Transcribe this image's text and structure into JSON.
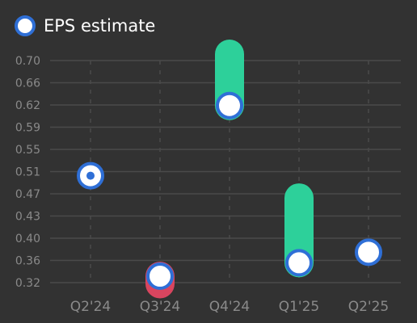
{
  "chart_data": {
    "type": "scatter",
    "title": "",
    "xlabel": "",
    "ylabel": "",
    "legend": {
      "label": "EPS estimate",
      "placement": "top-left"
    },
    "categories": [
      "Q2'24",
      "Q3'24",
      "Q4'24",
      "Q1'25",
      "Q2'25"
    ],
    "y_ticks": [
      "0.32",
      "0.36",
      "0.40",
      "0.43",
      "0.47",
      "0.51",
      "0.55",
      "0.59",
      "0.62",
      "0.66",
      "0.70"
    ],
    "ylim": [
      0.32,
      0.7
    ],
    "grid": "horizontal solid, vertical dashed",
    "series": [
      {
        "name": "EPS estimate",
        "values": [
          0.503,
          0.331,
          0.623,
          0.354,
          0.372
        ]
      },
      {
        "values": [
          null,
          0.318,
          0.711,
          0.465,
          null
        ]
      }
    ],
    "colors": {
      "background": "#323232",
      "estimate_fill": "#ffffff",
      "estimate_border": "#2f6fd6",
      "beat": "#2dd09a",
      "miss": "#d9455f",
      "grid": "#4a4a4a",
      "tick_text": "#8a8a8a"
    }
  }
}
